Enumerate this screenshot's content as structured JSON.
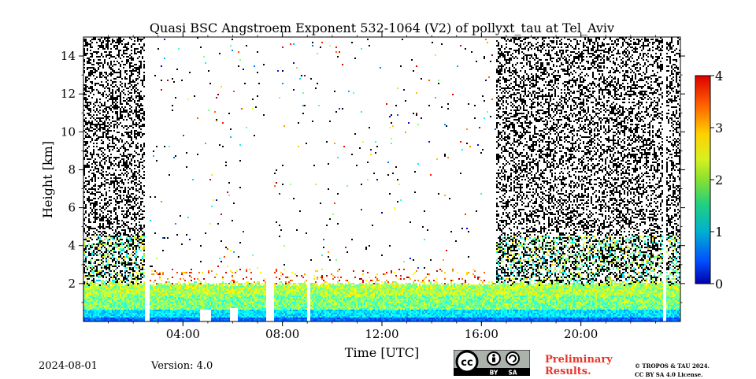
{
  "chart_data": {
    "type": "heatmap",
    "title": "Quasi BSC Angstroem Exponent 532-1064 (V2) of pollyxt_tau at Tel_Aviv",
    "xlabel": "Time [UTC]",
    "ylabel": "Height [km]",
    "xlim": [
      0,
      24
    ],
    "ylim": [
      0,
      15
    ],
    "x_ticks": [
      4,
      8,
      12,
      16,
      20
    ],
    "x_tick_labels": [
      "04:00",
      "08:00",
      "12:00",
      "16:00",
      "20:00"
    ],
    "y_ticks": [
      2,
      4,
      6,
      8,
      10,
      12,
      14
    ],
    "y_tick_labels": [
      "2",
      "4",
      "6",
      "8",
      "10",
      "12",
      "14"
    ],
    "colorbar": {
      "min": 0,
      "max": 4,
      "ticks": [
        0,
        1,
        2,
        3,
        4
      ],
      "tick_labels": [
        "0",
        "1",
        "2",
        "3",
        "4"
      ],
      "colormap": "jet"
    },
    "data_gaps_utc": [
      [
        2.5,
        2.65
      ],
      [
        7.35,
        7.65
      ],
      [
        9.0,
        9.15
      ],
      [
        23.3,
        23.45
      ]
    ],
    "low_signal_dips": [
      [
        4.7,
        5.1,
        0.6
      ],
      [
        5.9,
        6.2,
        0.7
      ]
    ],
    "boundary_layer_top_km": 2.0,
    "noisy_periods_utc": [
      [
        0,
        2.5
      ],
      [
        16.6,
        24
      ]
    ],
    "dominant_value_in_boundary_layer": 2.0
  },
  "footer": {
    "date": "2024-08-01",
    "version": "Version: 4.0",
    "license_badge": [
      "BY",
      "SA"
    ],
    "preliminary": [
      "Preliminary",
      "Results."
    ],
    "copyright": [
      "© TROPOS & TAU 2024.",
      "CC BY SA 4.0 License."
    ]
  }
}
